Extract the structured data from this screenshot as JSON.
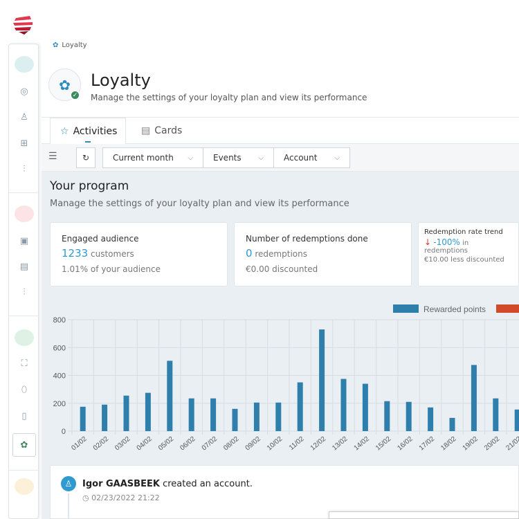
{
  "breadcrumb": "Loyalty",
  "header": {
    "title": "Loyalty",
    "subtitle": "Manage the settings of your loyalty plan and view its performance"
  },
  "tabs": [
    {
      "label": "Activities",
      "icon": "star-icon"
    },
    {
      "label": "Cards",
      "icon": "card-icon"
    }
  ],
  "toolbar": {
    "filters": [
      "Current month",
      "Events",
      "Account"
    ]
  },
  "program": {
    "title": "Your program",
    "subtitle": "Manage the settings of your loyalty plan and view its performance"
  },
  "cards": [
    {
      "title": "Engaged audience",
      "value": "1233",
      "unit": "customers",
      "sub": "1.01% of your audience"
    },
    {
      "title": "Number of redemptions done",
      "value": "0",
      "unit": "redemptions",
      "sub": "€0.00 discounted"
    },
    {
      "title": "Redemption rate trend",
      "arrow": "↓",
      "value": "-100%",
      "unit": "in redemptions",
      "sub": "€10.00 less discounted"
    }
  ],
  "colors": {
    "accent": "#2e9ad0",
    "bar": "#2f7fad",
    "second": "#d14a2a",
    "trend_down": "#d9342b"
  },
  "chart_data": {
    "type": "bar",
    "categories": [
      "01/02",
      "02/02",
      "03/02",
      "04/02",
      "05/02",
      "06/02",
      "07/02",
      "08/02",
      "09/02",
      "10/02",
      "11/02",
      "12/02",
      "13/02",
      "14/02",
      "15/02",
      "16/02",
      "17/02",
      "18/02",
      "19/02",
      "20/02",
      "21/02"
    ],
    "series": [
      {
        "name": "Rewarded points",
        "values": [
          175,
          190,
          255,
          275,
          505,
          235,
          235,
          160,
          205,
          205,
          350,
          730,
          375,
          340,
          215,
          210,
          170,
          95,
          475,
          235,
          155
        ]
      }
    ],
    "legend": [
      "Rewarded points",
      ""
    ],
    "yticks": [
      0,
      200,
      400,
      600,
      800
    ],
    "ylim": [
      0,
      800
    ],
    "grid": true,
    "legend_position": "top-right"
  },
  "activity": {
    "name": "Igor GAASBEEK",
    "action": "created an account.",
    "time": "02/23/2022 21:22"
  }
}
